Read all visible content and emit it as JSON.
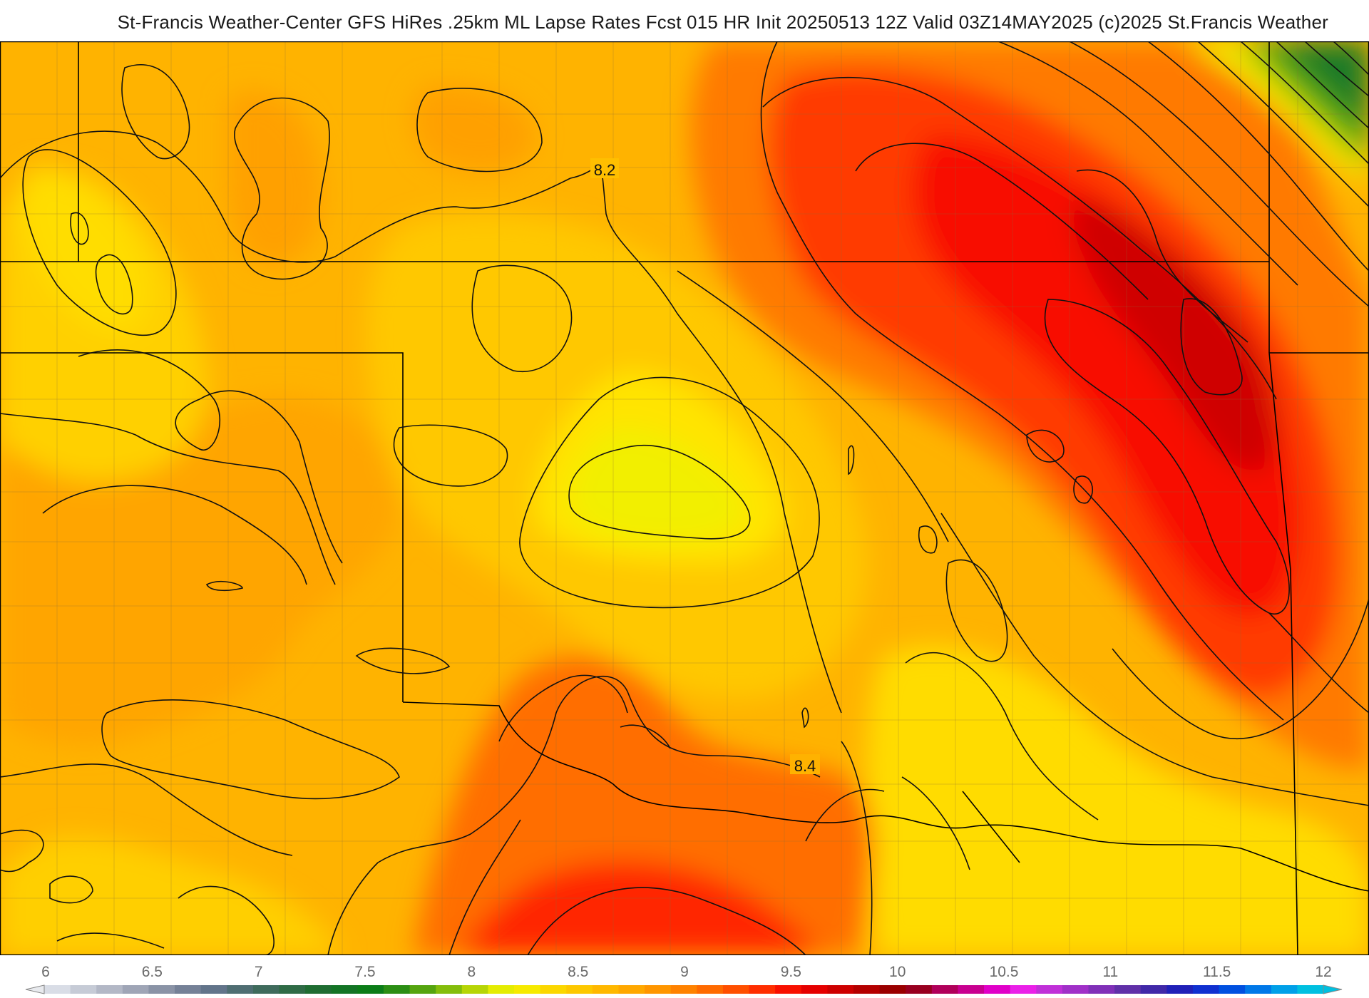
{
  "title": "St-Francis Weather-Center GFS HiRes .25km ML Lapse Rates  Fcst 015 HR Init 20250513 12Z  Valid 03Z14MAY2025    (c)2025 St.Francis Weather",
  "map": {
    "contour_labels": [
      {
        "id": "label-8-2",
        "text": "8.2"
      },
      {
        "id": "label-8-4",
        "text": "8.4"
      }
    ]
  },
  "colorbar": {
    "tick_labels": [
      "6",
      "6.5",
      "7",
      "7.5",
      "8",
      "8.5",
      "9",
      "9.5",
      "10",
      "10.5",
      "11",
      "11.5",
      "12"
    ],
    "min": 6,
    "max": 12,
    "colors": [
      "#d9dde6",
      "#c6cbd6",
      "#b3b8c6",
      "#9fa5b6",
      "#8a93a6",
      "#758197",
      "#62748a",
      "#4f6e72",
      "#3f6b5c",
      "#2f6b46",
      "#1f6d32",
      "#137425",
      "#0b7d18",
      "#2b8e14",
      "#55a40f",
      "#84bd0b",
      "#b6d506",
      "#e4ec02",
      "#f6ea00",
      "#fbd700",
      "#fdc800",
      "#ffb800",
      "#ffa800",
      "#ff9600",
      "#ff8200",
      "#ff6a00",
      "#ff4f00",
      "#ff2e00",
      "#f81000",
      "#e50000",
      "#cd0000",
      "#b40000",
      "#9a0000",
      "#980020",
      "#b0005a",
      "#c80090",
      "#e000c8",
      "#ea20e8",
      "#c030d8",
      "#a030c8",
      "#8030b8",
      "#6030a8",
      "#4028a8",
      "#2020b8",
      "#1030d0",
      "#0050e0",
      "#0078e8",
      "#00a0e8",
      "#00c0e0"
    ]
  }
}
